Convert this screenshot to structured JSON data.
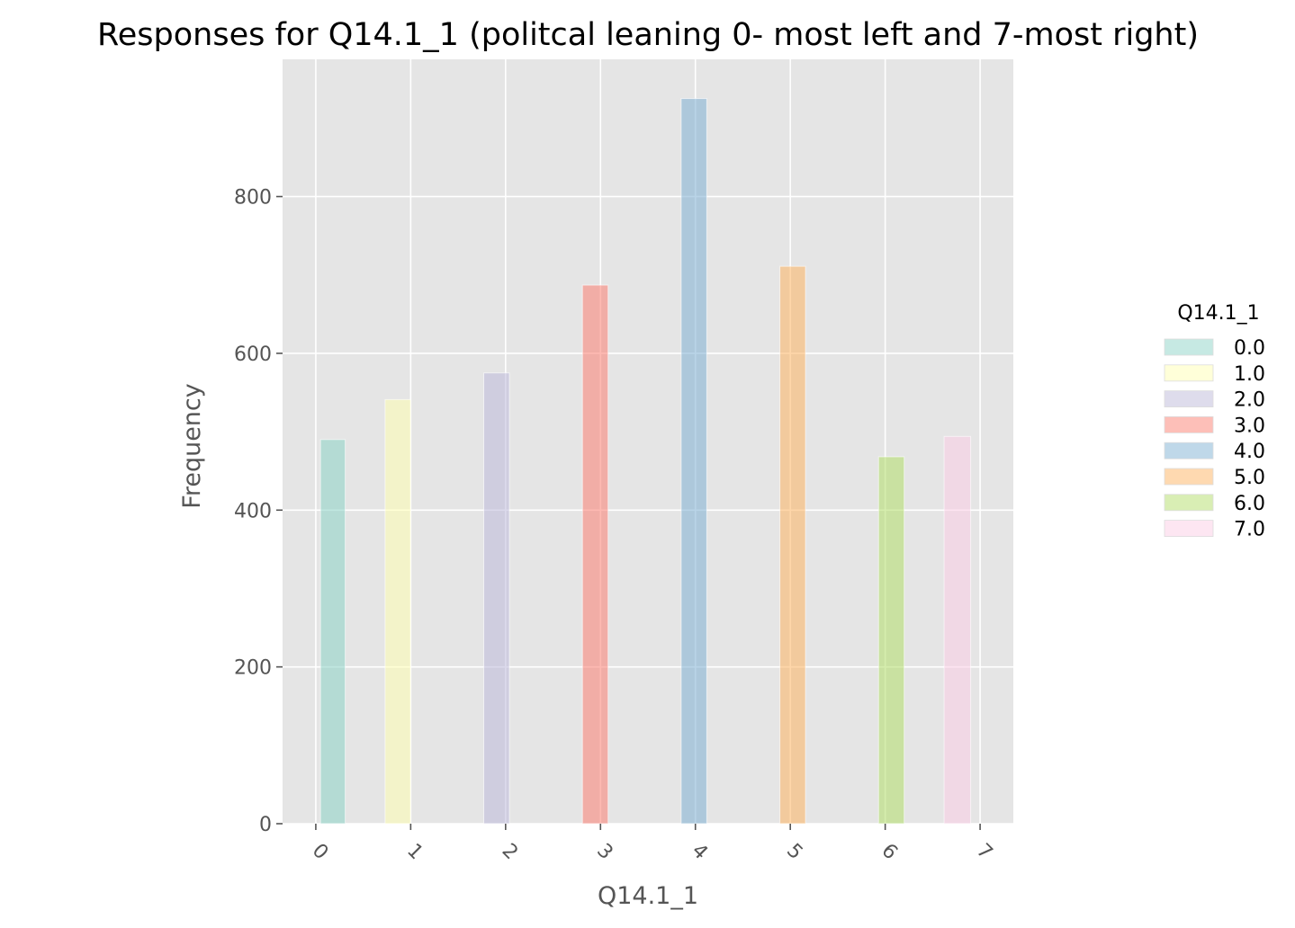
{
  "chart_data": {
    "type": "bar",
    "title": "Responses for Q14.1_1 (politcal leaning 0- most left and 7-most right)",
    "xlabel": "Q14.1_1",
    "ylabel": "Frequency",
    "x_ticks": [
      "0",
      "1",
      "2",
      "3",
      "4",
      "5",
      "6",
      "7"
    ],
    "y_ticks": [
      "0",
      "200",
      "400",
      "600",
      "800"
    ],
    "xlim": [
      -0.35,
      7.35
    ],
    "ylim": [
      0,
      975
    ],
    "grid": true,
    "legend": {
      "title": "Q14.1_1",
      "placement": "right",
      "entries": [
        "0.0",
        "1.0",
        "2.0",
        "3.0",
        "4.0",
        "5.0",
        "6.0",
        "7.0"
      ]
    },
    "bars": [
      {
        "category": "0.0",
        "x_start": 0.05,
        "x_end": 0.31,
        "value": 490
      },
      {
        "category": "1.0",
        "x_start": 0.73,
        "x_end": 1.0,
        "value": 541
      },
      {
        "category": "2.0",
        "x_start": 1.77,
        "x_end": 2.04,
        "value": 575
      },
      {
        "category": "3.0",
        "x_start": 2.81,
        "x_end": 3.08,
        "value": 687
      },
      {
        "category": "4.0",
        "x_start": 3.85,
        "x_end": 4.12,
        "value": 925
      },
      {
        "category": "5.0",
        "x_start": 4.89,
        "x_end": 5.16,
        "value": 711
      },
      {
        "category": "6.0",
        "x_start": 5.93,
        "x_end": 6.2,
        "value": 468
      },
      {
        "category": "7.0",
        "x_start": 6.62,
        "x_end": 6.9,
        "value": 494
      }
    ],
    "colors": [
      "#8dd3c7",
      "#ffffb3",
      "#bebada",
      "#fb8072",
      "#80b1d3",
      "#fdb462",
      "#b3de69",
      "#fccde5"
    ]
  }
}
